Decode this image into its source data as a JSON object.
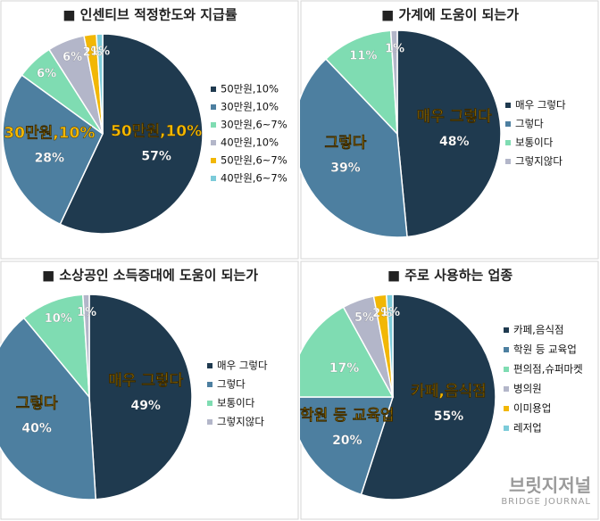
{
  "chart_data": [
    {
      "type": "pie",
      "title": "■ 인센티브 적정한도와 지급률",
      "categories": [
        "50만원,10%",
        "30만원,10%",
        "30만원,6~7%",
        "40만원,10%",
        "50만원,6~7%",
        "40만원,6~7%"
      ],
      "values": [
        57,
        28,
        6,
        6,
        2,
        1
      ],
      "value_labels": [
        "57%",
        "28%",
        "6%",
        "6%",
        "2%",
        "1%"
      ],
      "colors": [
        "#1f3a4f",
        "#4d7fa0",
        "#7fdcb2",
        "#b3b6c9",
        "#f2b705",
        "#7ccbd9"
      ]
    },
    {
      "type": "pie",
      "title": "■ 가계에 도움이 되는가",
      "categories": [
        "매우 그렇다",
        "그렇다",
        "보통이다",
        "그렇지않다"
      ],
      "values": [
        48,
        39,
        11,
        1
      ],
      "value_labels": [
        "48%",
        "39%",
        "11%",
        "1%"
      ],
      "colors": [
        "#1f3a4f",
        "#4d7fa0",
        "#7fdcb2",
        "#b3b6c9"
      ]
    },
    {
      "type": "pie",
      "title": "■ 소상공인 소득증대에 도움이 되는가",
      "categories": [
        "매우 그렇다",
        "그렇다",
        "보통이다",
        "그렇지않다"
      ],
      "values": [
        49,
        40,
        10,
        1
      ],
      "value_labels": [
        "49%",
        "40%",
        "10%",
        "1%"
      ],
      "colors": [
        "#1f3a4f",
        "#4d7fa0",
        "#7fdcb2",
        "#b3b6c9"
      ]
    },
    {
      "type": "pie",
      "title": "■ 주로 사용하는 업종",
      "categories": [
        "카페,음식점",
        "학원 등 교육업",
        "편의점,슈퍼마켓",
        "병의원",
        "이미용업",
        "레저업"
      ],
      "values": [
        55,
        20,
        17,
        5,
        2,
        1
      ],
      "value_labels": [
        "55%",
        "20%",
        "17%",
        "5%",
        "2%",
        "1%"
      ],
      "colors": [
        "#1f3a4f",
        "#4d7fa0",
        "#7fdcb2",
        "#b3b6c9",
        "#f2b705",
        "#7ccbd9"
      ]
    }
  ],
  "brand": {
    "name": "브릿지저널",
    "sub": "BRIDGE JOURNAL"
  }
}
